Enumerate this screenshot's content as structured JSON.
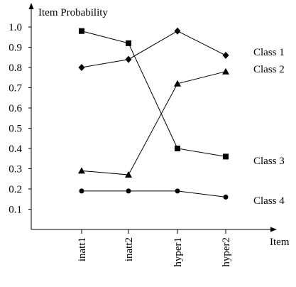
{
  "chart_data": {
    "type": "line",
    "ylabel": "Item Probability",
    "xlabel": "Item",
    "categories": [
      "inatt1",
      "inatt2",
      "hyper1",
      "hyper2"
    ],
    "ylim": [
      0,
      1.05
    ],
    "yticks": [
      "0.1",
      "0.2",
      "0.3",
      "0.4",
      "0.5",
      "0.6",
      "0.7",
      "0.8",
      "0.9",
      "1.0"
    ],
    "grid": false,
    "legend": "right, series names placed next to line ends",
    "series": [
      {
        "name": "Class 1",
        "marker": "diamond",
        "values": [
          0.8,
          0.84,
          0.98,
          0.86
        ]
      },
      {
        "name": "Class 2",
        "marker": "triangle",
        "values": [
          0.29,
          0.27,
          0.72,
          0.78
        ]
      },
      {
        "name": "Class 3",
        "marker": "square",
        "values": [
          0.98,
          0.92,
          0.4,
          0.36
        ]
      },
      {
        "name": "Class 4",
        "marker": "circle",
        "values": [
          0.19,
          0.19,
          0.19,
          0.16
        ]
      }
    ]
  }
}
